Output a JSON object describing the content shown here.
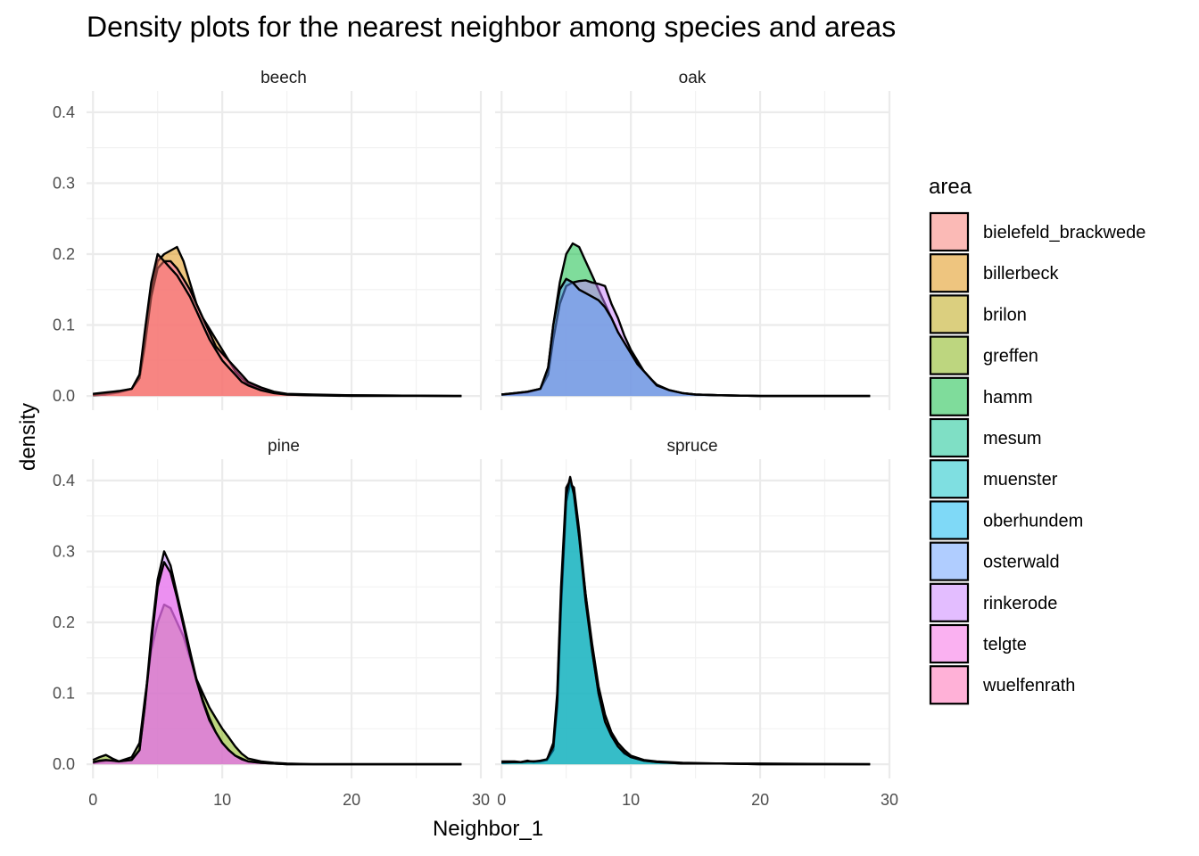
{
  "chart_data": {
    "type": "area",
    "title": "Density plots for the nearest neighbor among species and areas",
    "xlabel": "Neighbor_1",
    "ylabel": "density",
    "xlim": [
      -0.5,
      30
    ],
    "ylim": [
      -0.02,
      0.43
    ],
    "x_ticks": [
      0,
      10,
      20,
      30
    ],
    "y_ticks": [
      0.0,
      0.1,
      0.2,
      0.3,
      0.4
    ],
    "x_tick_labels": [
      "0",
      "10",
      "20",
      "30"
    ],
    "y_tick_labels": [
      "0.0",
      "0.1",
      "0.2",
      "0.3",
      "0.4"
    ],
    "grid": true,
    "legend": {
      "title": "area",
      "placement": "right",
      "entries": [
        {
          "label": "bielefeld_brackwede",
          "color": "#F8766D"
        },
        {
          "label": "billerbeck",
          "color": "#DE8C00"
        },
        {
          "label": "brilon",
          "color": "#B79F00"
        },
        {
          "label": "greffen",
          "color": "#7CAE00"
        },
        {
          "label": "hamm",
          "color": "#00BA38"
        },
        {
          "label": "mesum",
          "color": "#00C08B"
        },
        {
          "label": "muenster",
          "color": "#00BFC4"
        },
        {
          "label": "oberhundem",
          "color": "#00B4F0"
        },
        {
          "label": "osterwald",
          "color": "#619CFF"
        },
        {
          "label": "rinkerode",
          "color": "#C77CFF"
        },
        {
          "label": "telgte",
          "color": "#F564E3"
        },
        {
          "label": "wuelfenrath",
          "color": "#FF64B0"
        }
      ]
    },
    "fill_alpha": 0.5,
    "panels": [
      {
        "facet": "beech",
        "series": [
          {
            "area": "billerbeck",
            "color": "#DE8C00",
            "x": [
              0,
              1,
              2,
              3,
              3.6,
              4,
              4.5,
              5,
              5.5,
              6,
              6.5,
              7,
              7.5,
              8,
              8.5,
              9,
              9.5,
              10,
              10.5,
              11,
              11.5,
              12,
              13,
              14,
              15,
              17,
              20,
              28.5
            ],
            "y": [
              0.001,
              0.002,
              0.005,
              0.01,
              0.03,
              0.08,
              0.15,
              0.19,
              0.2,
              0.205,
              0.21,
              0.19,
              0.16,
              0.13,
              0.11,
              0.095,
              0.08,
              0.065,
              0.05,
              0.035,
              0.025,
              0.018,
              0.01,
              0.005,
              0.002,
              0.001,
              0.0,
              0.0
            ]
          },
          {
            "area": "wuelfenrath",
            "color": "#FF64B0",
            "x": [
              0,
              1,
              2,
              3,
              3.6,
              4,
              4.5,
              5,
              5.5,
              6,
              6.5,
              7,
              7.5,
              8,
              8.5,
              9,
              9.5,
              10,
              10.5,
              11,
              11.5,
              12,
              13,
              14,
              15,
              17,
              20,
              28.5
            ],
            "y": [
              0.002,
              0.004,
              0.006,
              0.01,
              0.025,
              0.07,
              0.14,
              0.18,
              0.19,
              0.19,
              0.18,
              0.165,
              0.15,
              0.13,
              0.11,
              0.09,
              0.07,
              0.06,
              0.05,
              0.04,
              0.03,
              0.02,
              0.012,
              0.006,
              0.003,
              0.002,
              0.001,
              0.0
            ]
          },
          {
            "area": "bielefeld_brackwede",
            "color": "#F8766D",
            "x": [
              0,
              1,
              2,
              3,
              3.6,
              4,
              4.5,
              5,
              5.5,
              6,
              6.5,
              7,
              7.5,
              8,
              8.5,
              9,
              9.5,
              10,
              10.5,
              11,
              11.5,
              12,
              13,
              14,
              15,
              17,
              20,
              28.5
            ],
            "y": [
              0.003,
              0.005,
              0.007,
              0.01,
              0.03,
              0.09,
              0.16,
              0.2,
              0.19,
              0.18,
              0.17,
              0.155,
              0.14,
              0.12,
              0.1,
              0.08,
              0.065,
              0.05,
              0.04,
              0.03,
              0.02,
              0.015,
              0.008,
              0.004,
              0.002,
              0.001,
              0.001,
              0.0
            ]
          }
        ]
      },
      {
        "facet": "oak",
        "series": [
          {
            "area": "hamm",
            "color": "#00BA38",
            "x": [
              0,
              1,
              2,
              3,
              3.6,
              4,
              4.5,
              5,
              5.5,
              6,
              6.5,
              7,
              7.5,
              8,
              8.5,
              9,
              9.5,
              10,
              10.5,
              11,
              11.5,
              12,
              13,
              14,
              15,
              17,
              20,
              28.5
            ],
            "y": [
              0.002,
              0.003,
              0.005,
              0.01,
              0.04,
              0.1,
              0.16,
              0.2,
              0.215,
              0.21,
              0.19,
              0.17,
              0.15,
              0.13,
              0.11,
              0.09,
              0.075,
              0.06,
              0.045,
              0.035,
              0.025,
              0.015,
              0.008,
              0.004,
              0.002,
              0.001,
              0.0,
              0.0
            ]
          },
          {
            "area": "rinkerode",
            "color": "#C77CFF",
            "x": [
              0,
              1,
              2,
              3,
              3.6,
              4,
              4.5,
              5,
              5.5,
              6,
              6.5,
              7,
              7.5,
              8,
              8.5,
              9,
              9.5,
              10,
              10.5,
              11,
              11.5,
              12,
              13,
              14,
              15,
              17,
              20,
              28.5
            ],
            "y": [
              0.002,
              0.004,
              0.006,
              0.01,
              0.03,
              0.08,
              0.13,
              0.155,
              0.16,
              0.162,
              0.163,
              0.16,
              0.158,
              0.155,
              0.13,
              0.11,
              0.085,
              0.065,
              0.05,
              0.035,
              0.025,
              0.016,
              0.008,
              0.004,
              0.002,
              0.001,
              0.0,
              0.0
            ]
          },
          {
            "area": "osterwald",
            "color": "#619CFF",
            "x": [
              0,
              1,
              2,
              3,
              3.6,
              4,
              4.5,
              5,
              5.5,
              6,
              6.5,
              7,
              7.5,
              8,
              8.5,
              9,
              9.5,
              10,
              10.5,
              11,
              11.5,
              12,
              13,
              14,
              15,
              17,
              20,
              28.5
            ],
            "y": [
              0.002,
              0.004,
              0.006,
              0.01,
              0.04,
              0.1,
              0.15,
              0.165,
              0.16,
              0.15,
              0.145,
              0.14,
              0.135,
              0.125,
              0.11,
              0.09,
              0.075,
              0.06,
              0.045,
              0.035,
              0.025,
              0.015,
              0.008,
              0.004,
              0.002,
              0.001,
              0.0,
              0.0
            ]
          }
        ]
      },
      {
        "facet": "pine",
        "series": [
          {
            "area": "greffen",
            "color": "#7CAE00",
            "x": [
              0,
              0.5,
              1,
              1.5,
              2,
              3,
              3.6,
              4,
              4.5,
              5,
              5.5,
              6,
              6.5,
              7,
              7.5,
              8,
              8.5,
              9,
              9.5,
              10,
              10.5,
              11,
              11.5,
              12,
              13,
              14,
              15,
              17,
              20,
              28.5
            ],
            "y": [
              0.006,
              0.01,
              0.013,
              0.008,
              0.004,
              0.01,
              0.03,
              0.09,
              0.16,
              0.2,
              0.225,
              0.22,
              0.2,
              0.18,
              0.15,
              0.12,
              0.1,
              0.08,
              0.065,
              0.05,
              0.038,
              0.025,
              0.015,
              0.008,
              0.004,
              0.002,
              0.001,
              0.0,
              0.0,
              0.0
            ]
          },
          {
            "area": "rinkerode",
            "color": "#C77CFF",
            "x": [
              0,
              0.5,
              1,
              1.5,
              2,
              3,
              3.6,
              4,
              4.5,
              5,
              5.5,
              6,
              6.5,
              7,
              7.5,
              8,
              8.5,
              9,
              9.5,
              10,
              10.5,
              11,
              11.5,
              12,
              13,
              14,
              15,
              17,
              20,
              28.5
            ],
            "y": [
              0.002,
              0.004,
              0.005,
              0.005,
              0.004,
              0.006,
              0.02,
              0.08,
              0.18,
              0.26,
              0.3,
              0.28,
              0.24,
              0.2,
              0.16,
              0.12,
              0.09,
              0.065,
              0.045,
              0.03,
              0.02,
              0.012,
              0.008,
              0.004,
              0.002,
              0.001,
              0.0,
              0.0,
              0.0,
              0.0
            ]
          },
          {
            "area": "telgte",
            "color": "#F564E3",
            "x": [
              0,
              0.5,
              1,
              1.5,
              2,
              3,
              3.6,
              4,
              4.5,
              5,
              5.5,
              6,
              6.5,
              7,
              7.5,
              8,
              8.5,
              9,
              9.5,
              10,
              10.5,
              11,
              11.5,
              12,
              13,
              14,
              15,
              17,
              20,
              28.5
            ],
            "y": [
              0.003,
              0.005,
              0.006,
              0.005,
              0.004,
              0.006,
              0.02,
              0.08,
              0.17,
              0.25,
              0.285,
              0.27,
              0.235,
              0.195,
              0.155,
              0.118,
              0.088,
              0.062,
              0.045,
              0.03,
              0.02,
              0.012,
              0.007,
              0.004,
              0.002,
              0.001,
              0.0,
              0.0,
              0.0,
              0.0
            ]
          }
        ]
      },
      {
        "facet": "spruce",
        "series": [
          {
            "area": "brilon",
            "color": "#B79F00",
            "x": [
              0,
              1,
              1.5,
              2,
              2.5,
              3,
              3.5,
              4,
              4.3,
              4.6,
              5,
              5.3,
              5.6,
              6,
              6.5,
              7,
              7.5,
              8,
              8.5,
              9,
              9.5,
              10,
              11,
              12,
              14,
              17,
              20,
              28.5
            ],
            "y": [
              0.004,
              0.004,
              0.003,
              0.005,
              0.003,
              0.004,
              0.006,
              0.03,
              0.1,
              0.25,
              0.39,
              0.4,
              0.38,
              0.32,
              0.24,
              0.17,
              0.11,
              0.07,
              0.045,
              0.03,
              0.02,
              0.012,
              0.006,
              0.004,
              0.002,
              0.001,
              0.001,
              0.0
            ]
          },
          {
            "area": "muenster",
            "color": "#00BFC4",
            "x": [
              0,
              1,
              1.5,
              2,
              2.5,
              3,
              3.5,
              4,
              4.3,
              4.6,
              5,
              5.3,
              5.6,
              6,
              6.5,
              7,
              7.5,
              8,
              8.5,
              9,
              9.5,
              10,
              11,
              12,
              14,
              17,
              20,
              28.5
            ],
            "y": [
              0.002,
              0.003,
              0.003,
              0.004,
              0.004,
              0.004,
              0.006,
              0.02,
              0.08,
              0.22,
              0.37,
              0.395,
              0.39,
              0.33,
              0.24,
              0.16,
              0.1,
              0.06,
              0.04,
              0.025,
              0.015,
              0.01,
              0.005,
              0.003,
              0.001,
              0.001,
              0.0,
              0.0
            ]
          },
          {
            "area": "oberhundem",
            "color": "#00B4F0",
            "x": [
              0,
              1,
              1.5,
              2,
              2.5,
              3,
              3.5,
              4,
              4.3,
              4.6,
              5,
              5.3,
              5.6,
              6,
              6.5,
              7,
              7.5,
              8,
              8.5,
              9,
              9.5,
              10,
              11,
              12,
              14,
              17,
              20,
              28.5
            ],
            "y": [
              0.003,
              0.003,
              0.003,
              0.004,
              0.004,
              0.005,
              0.007,
              0.025,
              0.09,
              0.24,
              0.38,
              0.405,
              0.38,
              0.32,
              0.23,
              0.16,
              0.1,
              0.06,
              0.04,
              0.025,
              0.016,
              0.01,
              0.005,
              0.003,
              0.001,
              0.001,
              0.0,
              0.0
            ]
          }
        ]
      }
    ]
  }
}
